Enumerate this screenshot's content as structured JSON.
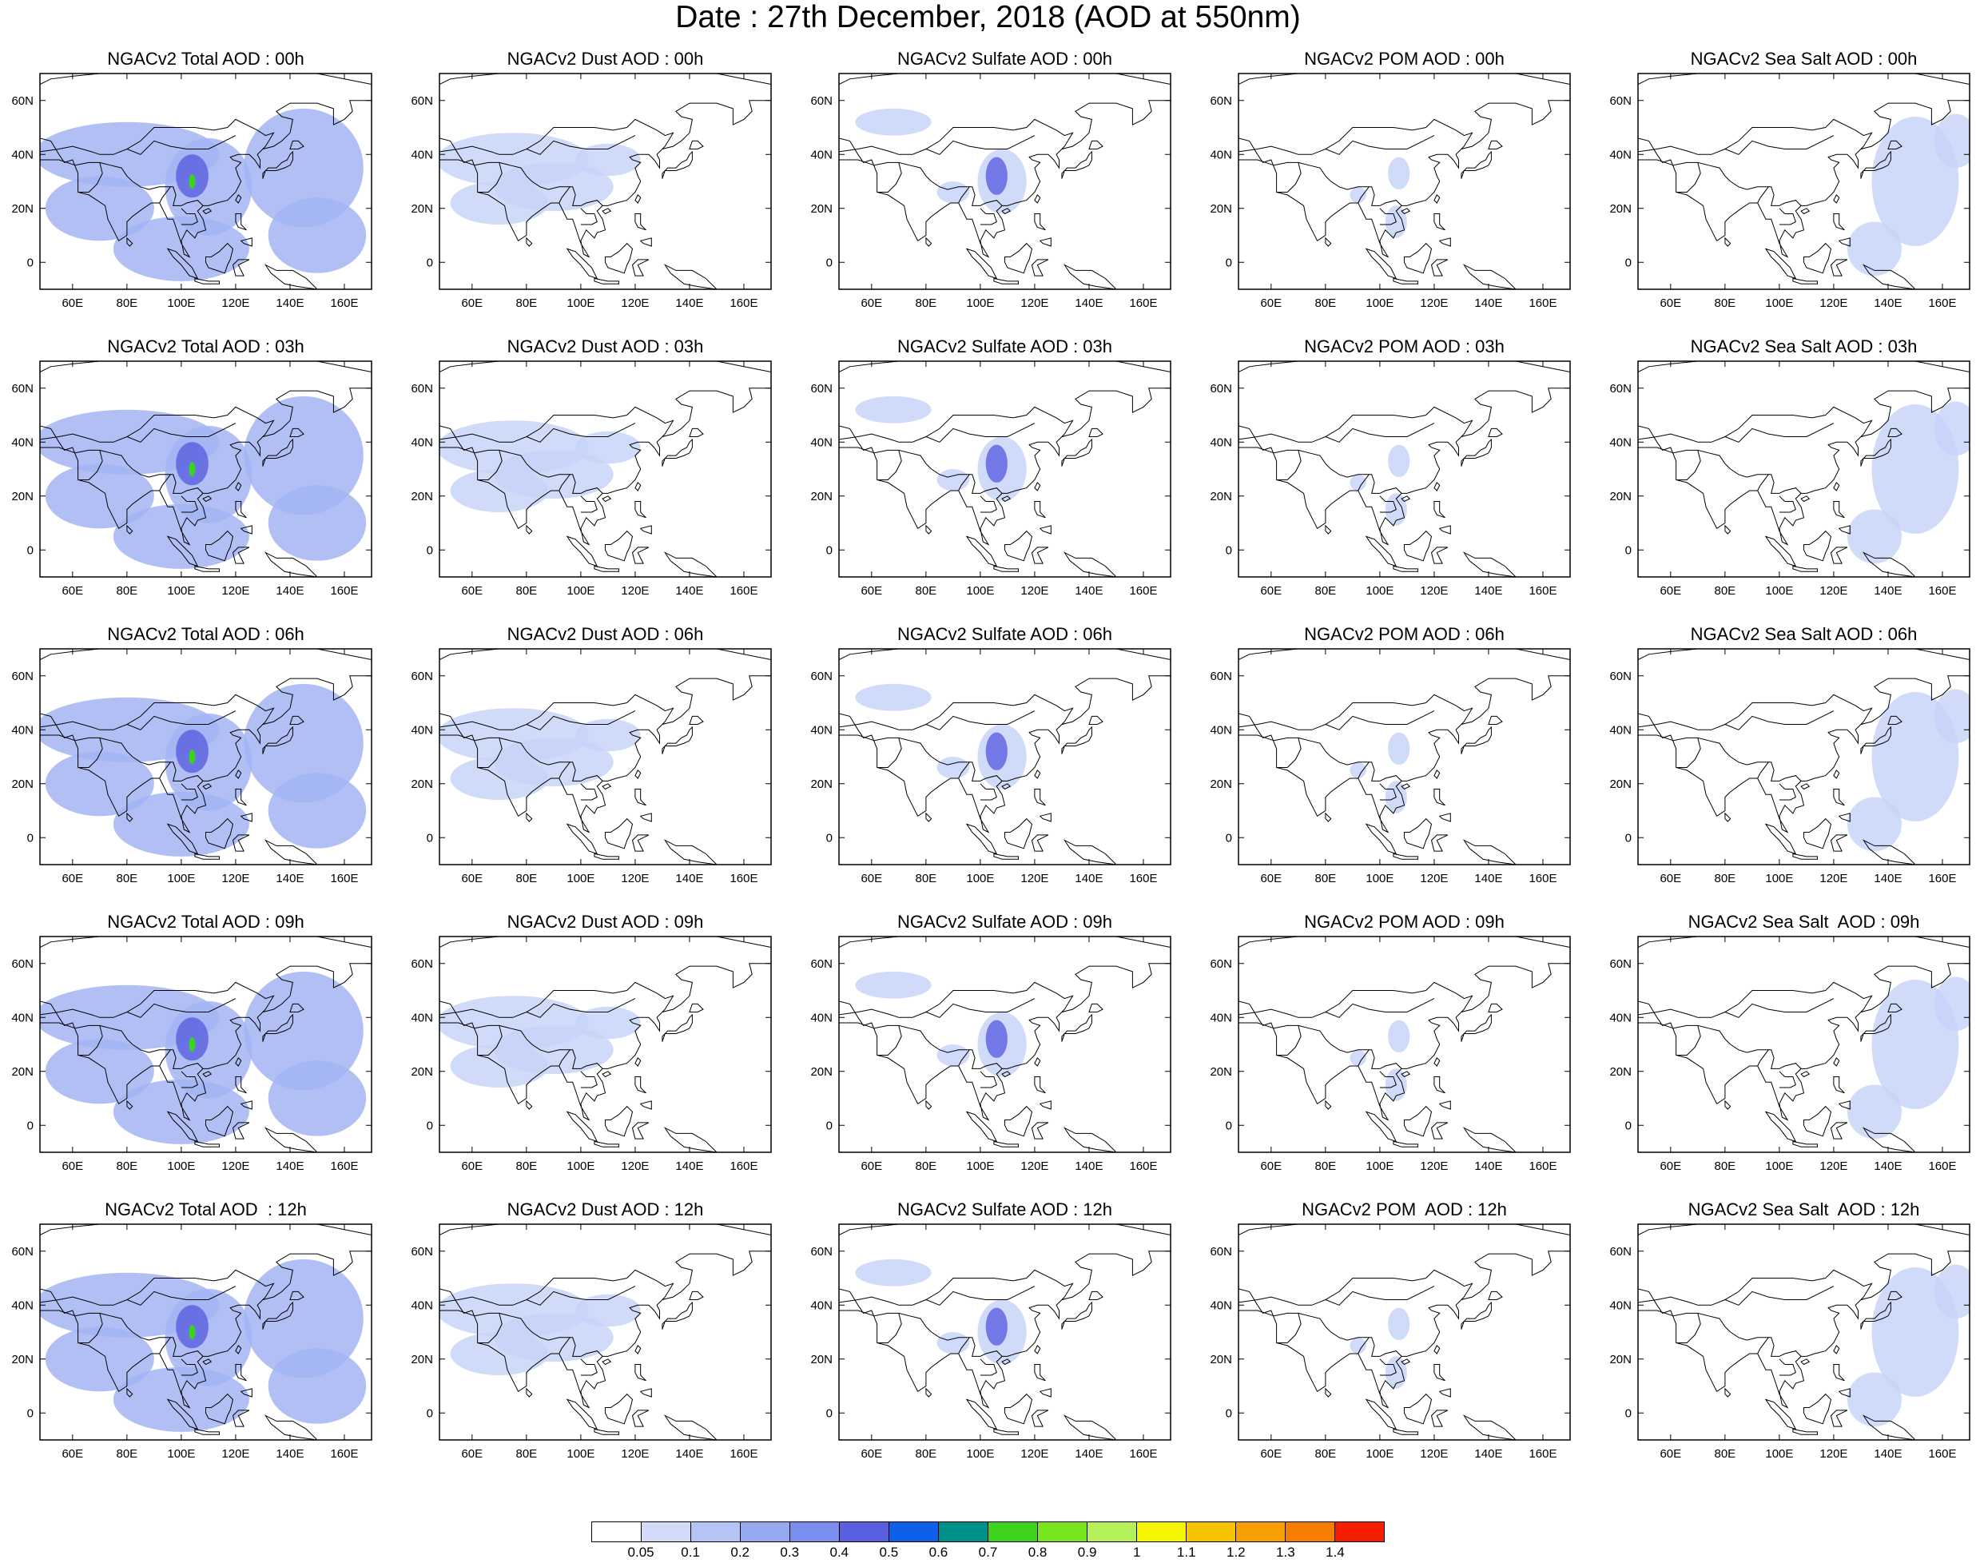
{
  "title": "Date : 27th December, 2018 (AOD at 550nm)",
  "map": {
    "lon_range": [
      48,
      170
    ],
    "lat_range": [
      -10,
      70
    ],
    "lon_ticks": [
      "60E",
      "80E",
      "100E",
      "120E",
      "140E",
      "160E"
    ],
    "lon_tick_values": [
      60,
      80,
      100,
      120,
      140,
      160
    ],
    "lat_ticks": [
      "0",
      "20N",
      "40N",
      "60N"
    ],
    "lat_tick_values": [
      0,
      20,
      40,
      60
    ],
    "coastline_color": "#000000"
  },
  "columns": [
    {
      "species": "Total",
      "color": "#a3b4f3"
    },
    {
      "species": "Dust",
      "color": "#c8d4f8"
    },
    {
      "species": "Sulfate",
      "color": "#c8d4f8"
    },
    {
      "species": "POM",
      "color": "#c8d4f8"
    },
    {
      "species": "Sea Salt",
      "color": "#c8d4f8"
    }
  ],
  "panels": [
    [
      "NGACv2 Total AOD : 00h",
      "NGACv2 Dust AOD : 00h",
      "NGACv2 Sulfate AOD : 00h",
      "NGACv2 POM AOD : 00h",
      "NGACv2 Sea Salt AOD : 00h"
    ],
    [
      "NGACv2 Total AOD : 03h",
      "NGACv2 Dust AOD : 03h",
      "NGACv2 Sulfate AOD : 03h",
      "NGACv2 POM AOD : 03h",
      "NGACv2 Sea Salt AOD : 03h"
    ],
    [
      "NGACv2 Total AOD : 06h",
      "NGACv2 Dust AOD : 06h",
      "NGACv2 Sulfate AOD : 06h",
      "NGACv2 POM AOD : 06h",
      "NGACv2 Sea Salt AOD : 06h"
    ],
    [
      "NGACv2 Total AOD : 09h",
      "NGACv2 Dust AOD : 09h",
      "NGACv2 Sulfate AOD : 09h",
      "NGACv2 POM AOD : 09h",
      "NGACv2 Sea Salt  AOD : 09h"
    ],
    [
      "NGACv2 Total AOD  : 12h",
      "NGACv2 Dust AOD : 12h",
      "NGACv2 Sulfate AOD : 12h",
      "NGACv2 POM  AOD : 12h",
      "NGACv2 Sea Salt  AOD : 12h"
    ]
  ],
  "colorbar": {
    "labels": [
      "0.05",
      "0.1",
      "0.2",
      "0.3",
      "0.4",
      "0.5",
      "0.6",
      "0.7",
      "0.8",
      "0.9",
      "1",
      "1.1",
      "1.2",
      "1.3",
      "1.4"
    ],
    "colors": [
      "#ffffff",
      "#d2dcf9",
      "#b4c4f5",
      "#95a9f0",
      "#7b8ded",
      "#5a5fe0",
      "#0f5fe8",
      "#00908a",
      "#3cd21e",
      "#78e61e",
      "#b4f05a",
      "#f5f500",
      "#f5c300",
      "#f5a000",
      "#f57d00",
      "#f51e00"
    ]
  }
}
